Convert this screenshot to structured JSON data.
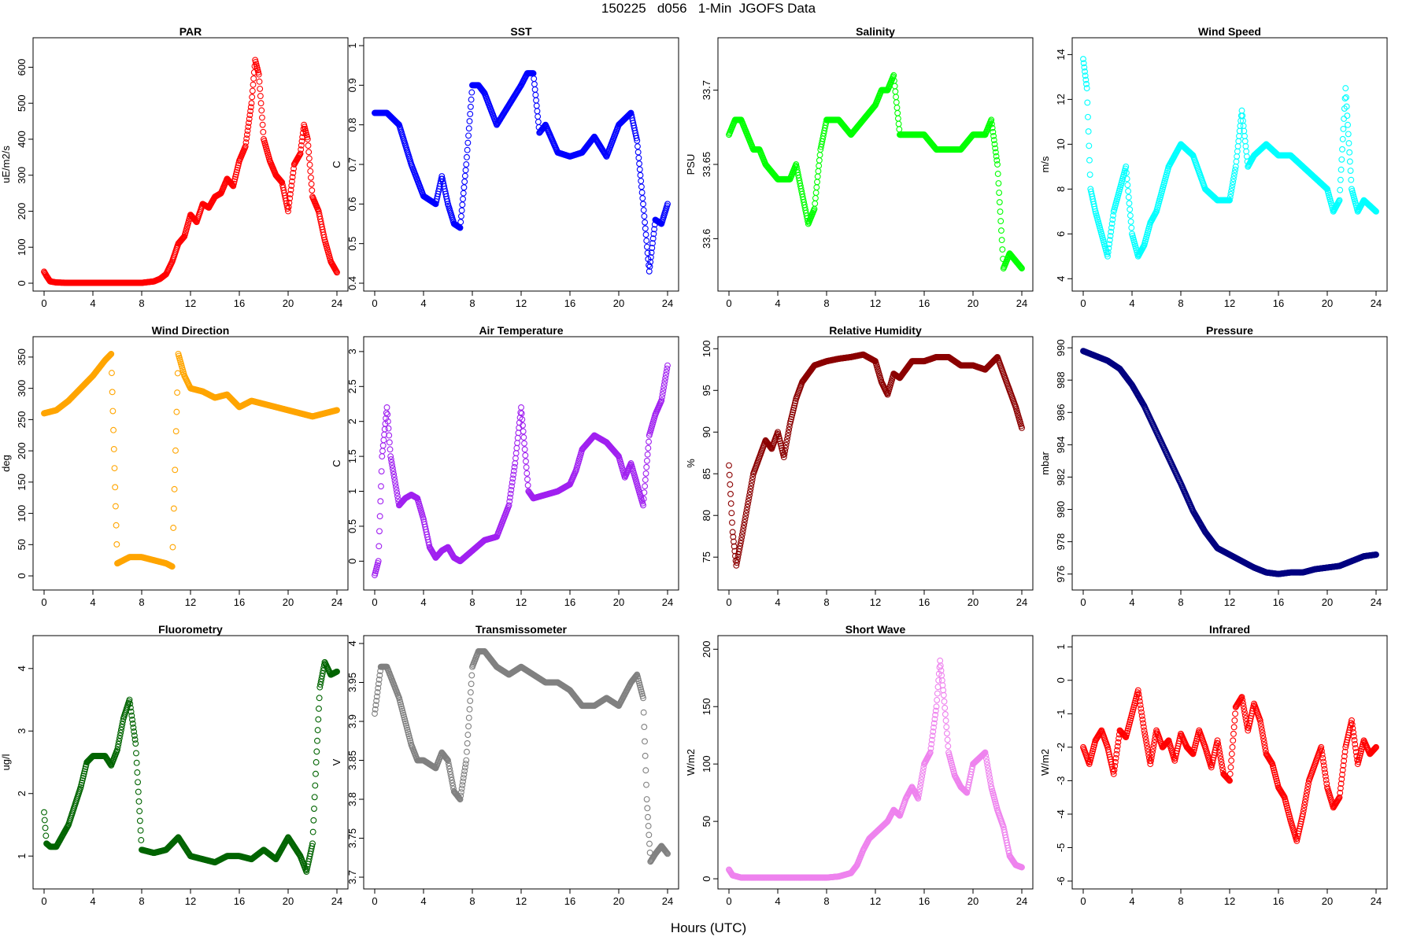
{
  "title": "150225   d056   1-Min  JGOFS Data",
  "xlabel": "Hours (UTC)",
  "chart_data": [
    {
      "type": "scatter",
      "title": "PAR",
      "ylabel": "uE/m2/s",
      "color": "#ff0000",
      "xlim": [
        0,
        24
      ],
      "ylim": [
        0,
        660
      ],
      "xticks": [
        0,
        4,
        8,
        12,
        16,
        20,
        24
      ],
      "yticks": [
        0,
        100,
        200,
        300,
        400,
        500,
        600
      ],
      "x": [
        0,
        0.2,
        0.5,
        1,
        2,
        4,
        6,
        8,
        9,
        9.5,
        10,
        10.5,
        11,
        11.5,
        12,
        12.5,
        13,
        13.5,
        14,
        14.5,
        15,
        15.5,
        16,
        16.5,
        17,
        17.3,
        17.6,
        18,
        18.5,
        19,
        19.5,
        20,
        20.5,
        21,
        21.3,
        21.6,
        22,
        22.5,
        23,
        23.5,
        24
      ],
      "y": [
        32,
        20,
        5,
        2,
        1,
        1,
        1,
        1,
        5,
        12,
        25,
        60,
        110,
        130,
        190,
        170,
        220,
        210,
        240,
        250,
        290,
        270,
        340,
        380,
        500,
        620,
        580,
        400,
        340,
        300,
        280,
        200,
        330,
        360,
        440,
        400,
        240,
        200,
        120,
        60,
        30
      ]
    },
    {
      "type": "scatter",
      "title": "SST",
      "ylabel": "C",
      "color": "#0000ff",
      "xlim": [
        0,
        24
      ],
      "ylim": [
        0.4,
        1.0
      ],
      "xticks": [
        0,
        4,
        8,
        12,
        16,
        20,
        24
      ],
      "yticks": [
        0.4,
        0.5,
        0.6,
        0.7,
        0.8,
        0.9,
        1.0
      ],
      "x": [
        0,
        1,
        2,
        3,
        4,
        5,
        5.5,
        6,
        6.5,
        7,
        7.5,
        8,
        8.5,
        9,
        10,
        11,
        12,
        12.5,
        13,
        13.5,
        14,
        15,
        16,
        17,
        18,
        19,
        20,
        21,
        21.5,
        22,
        22.5,
        23,
        23.5,
        24
      ],
      "y": [
        0.83,
        0.83,
        0.8,
        0.7,
        0.62,
        0.6,
        0.67,
        0.6,
        0.55,
        0.54,
        0.7,
        0.9,
        0.9,
        0.88,
        0.8,
        0.85,
        0.9,
        0.93,
        0.93,
        0.78,
        0.8,
        0.73,
        0.72,
        0.73,
        0.77,
        0.72,
        0.8,
        0.83,
        0.76,
        0.6,
        0.43,
        0.56,
        0.55,
        0.6
      ]
    },
    {
      "type": "scatter",
      "title": "Salinity",
      "ylabel": "PSU",
      "color": "#00ff00",
      "xlim": [
        0,
        24
      ],
      "ylim": [
        33.57,
        33.73
      ],
      "xticks": [
        0,
        4,
        8,
        12,
        16,
        20,
        24
      ],
      "yticks": [
        33.6,
        33.65,
        33.7
      ],
      "x": [
        0,
        0.5,
        1,
        1.5,
        2,
        2.5,
        3,
        4,
        5,
        5.5,
        6,
        6.5,
        7,
        7.5,
        8,
        9,
        10,
        11,
        12,
        12.5,
        13,
        13.5,
        14,
        15,
        16,
        17,
        18,
        19,
        20,
        21,
        21.5,
        22,
        22.5,
        23,
        24
      ],
      "y": [
        33.67,
        33.68,
        33.68,
        33.67,
        33.66,
        33.66,
        33.65,
        33.64,
        33.64,
        33.65,
        33.63,
        33.61,
        33.62,
        33.66,
        33.68,
        33.68,
        33.67,
        33.68,
        33.69,
        33.7,
        33.7,
        33.71,
        33.67,
        33.67,
        33.67,
        33.66,
        33.66,
        33.66,
        33.67,
        33.67,
        33.68,
        33.65,
        33.58,
        33.59,
        33.58
      ]
    },
    {
      "type": "scatter",
      "title": "Wind Speed",
      "ylabel": "m/s",
      "color": "#00ffff",
      "xlim": [
        0,
        24
      ],
      "ylim": [
        3.8,
        14.4
      ],
      "xticks": [
        0,
        4,
        8,
        12,
        16,
        20,
        24
      ],
      "yticks": [
        4,
        6,
        8,
        10,
        12,
        14
      ],
      "x": [
        0,
        0.3,
        0.6,
        1,
        1.5,
        2,
        2.5,
        3,
        3.5,
        4,
        4.5,
        5,
        5.5,
        6,
        7,
        8,
        9,
        10,
        11,
        12,
        12.5,
        13,
        13.5,
        14,
        15,
        16,
        17,
        18,
        19,
        20,
        20.5,
        21,
        21.5,
        22,
        22.5,
        23,
        24
      ],
      "y": [
        13.8,
        12.5,
        8,
        7,
        6,
        5,
        7,
        8,
        9,
        6,
        5,
        5.5,
        6.5,
        7,
        9,
        10,
        9.5,
        8,
        7.5,
        7.5,
        9,
        11.5,
        9,
        9.5,
        10,
        9.5,
        9.5,
        9,
        8.5,
        8,
        7,
        7.5,
        12.5,
        8,
        7,
        7.5,
        7
      ]
    },
    {
      "type": "scatter",
      "title": "Wind Direction",
      "ylabel": "deg",
      "color": "#ffa500",
      "xlim": [
        0,
        24
      ],
      "ylim": [
        -10,
        370
      ],
      "xticks": [
        0,
        4,
        8,
        12,
        16,
        20,
        24
      ],
      "yticks": [
        0,
        50,
        100,
        150,
        200,
        250,
        300,
        350
      ],
      "x": [
        0,
        1,
        2,
        3,
        4,
        5,
        5.5,
        6,
        6.5,
        7,
        8,
        9,
        10,
        10.5,
        11,
        11.5,
        12,
        13,
        14,
        15,
        16,
        17,
        18,
        19,
        20,
        21,
        22,
        23,
        24
      ],
      "y": [
        260,
        265,
        280,
        300,
        320,
        345,
        355,
        20,
        25,
        30,
        30,
        25,
        20,
        15,
        355,
        320,
        300,
        295,
        285,
        290,
        270,
        280,
        275,
        270,
        265,
        260,
        255,
        260,
        265
      ]
    },
    {
      "type": "scatter",
      "title": "Air Temperature",
      "ylabel": "C",
      "color": "#a020f0",
      "xlim": [
        0,
        24
      ],
      "ylim": [
        -0.3,
        3.1
      ],
      "xticks": [
        0,
        4,
        8,
        12,
        16,
        20,
        24
      ],
      "yticks": [
        0,
        0.5,
        1,
        1.5,
        2,
        2.5,
        3
      ],
      "x": [
        0,
        0.3,
        0.6,
        1,
        1.3,
        1.6,
        2,
        2.5,
        3,
        3.5,
        4,
        4.5,
        5,
        5.5,
        6,
        6.5,
        7,
        8,
        9,
        10,
        11,
        11.5,
        12,
        12.3,
        12.6,
        13,
        14,
        15,
        16,
        16.5,
        17,
        18,
        19,
        20,
        20.5,
        21,
        21.5,
        22,
        22.5,
        23,
        23.5,
        24
      ],
      "y": [
        -0.2,
        0,
        1.5,
        2.2,
        1.5,
        1.2,
        0.8,
        0.9,
        0.95,
        0.9,
        0.6,
        0.2,
        0.05,
        0.15,
        0.2,
        0.05,
        0,
        0.15,
        0.3,
        0.35,
        0.8,
        1.4,
        2.2,
        1.6,
        1.0,
        0.9,
        0.95,
        1.0,
        1.1,
        1.3,
        1.6,
        1.8,
        1.7,
        1.5,
        1.2,
        1.4,
        1.1,
        0.8,
        1.8,
        2.1,
        2.3,
        2.8
      ]
    },
    {
      "type": "scatter",
      "title": "Relative Humidity",
      "ylabel": "%",
      "color": "#8b0000",
      "xlim": [
        0,
        24
      ],
      "ylim": [
        72,
        100.5
      ],
      "xticks": [
        0,
        4,
        8,
        12,
        16,
        20,
        24
      ],
      "yticks": [
        75,
        80,
        85,
        90,
        95,
        100
      ],
      "x": [
        0,
        0.3,
        0.6,
        1,
        1.5,
        2,
        2.5,
        3,
        3.5,
        4,
        4.5,
        5,
        5.5,
        6,
        7,
        8,
        9,
        10,
        11,
        12,
        12.5,
        13,
        13.5,
        14,
        15,
        16,
        17,
        18,
        19,
        20,
        21,
        22,
        22.5,
        23,
        23.5,
        24
      ],
      "y": [
        86,
        78,
        74,
        77,
        81,
        85,
        87,
        89,
        88,
        90,
        87,
        91,
        94,
        96,
        98,
        98.5,
        98.8,
        99,
        99.3,
        98.5,
        96,
        94.5,
        97,
        96.5,
        98.5,
        98.5,
        99,
        99,
        98,
        98,
        97.5,
        99,
        97,
        95,
        93,
        90.5
      ]
    },
    {
      "type": "scatter",
      "title": "Pressure",
      "ylabel": "mbar",
      "color": "#000080",
      "xlim": [
        0,
        24
      ],
      "ylim": [
        975.5,
        990.2
      ],
      "xticks": [
        0,
        4,
        8,
        12,
        16,
        20,
        24
      ],
      "yticks": [
        976,
        978,
        980,
        982,
        984,
        986,
        988,
        990
      ],
      "x": [
        0,
        1,
        2,
        3,
        4,
        5,
        6,
        7,
        8,
        9,
        10,
        11,
        12,
        13,
        14,
        15,
        16,
        17,
        18,
        19,
        20,
        21,
        22,
        23,
        24
      ],
      "y": [
        989.8,
        989.5,
        989.2,
        988.7,
        987.7,
        986.4,
        984.8,
        983.2,
        981.6,
        979.9,
        978.6,
        977.6,
        977.2,
        976.8,
        976.4,
        976.1,
        976,
        976.1,
        976.1,
        976.3,
        976.4,
        976.5,
        976.8,
        977.1,
        977.2
      ]
    },
    {
      "type": "scatter",
      "title": "Fluorometry",
      "ylabel": "ug/l",
      "color": "#006400",
      "xlim": [
        0,
        24
      ],
      "ylim": [
        0.6,
        4.4
      ],
      "xticks": [
        0,
        4,
        8,
        12,
        16,
        20,
        24
      ],
      "yticks": [
        1,
        2,
        3,
        4
      ],
      "x": [
        0,
        0.2,
        0.5,
        1,
        2,
        3,
        3.5,
        4,
        5,
        5.5,
        6,
        6.5,
        7,
        7.5,
        8,
        9,
        10,
        11,
        12,
        13,
        14,
        15,
        16,
        17,
        18,
        19,
        20,
        21,
        21.5,
        22,
        22.3,
        22.6,
        23,
        23.5,
        24
      ],
      "y": [
        1.7,
        1.2,
        1.15,
        1.15,
        1.5,
        2.1,
        2.5,
        2.6,
        2.6,
        2.45,
        2.7,
        3.2,
        3.5,
        2.8,
        1.1,
        1.05,
        1.1,
        1.3,
        1.0,
        0.95,
        0.9,
        1.0,
        1.0,
        0.95,
        1.1,
        0.95,
        1.3,
        1.0,
        0.75,
        1.2,
        2.5,
        3.7,
        4.1,
        3.9,
        3.95
      ]
    },
    {
      "type": "scatter",
      "title": "Transmissometer",
      "ylabel": "V",
      "color": "#808080",
      "xlim": [
        0,
        24
      ],
      "ylim": [
        3.695,
        4.0
      ],
      "xticks": [
        0,
        4,
        8,
        12,
        16,
        20,
        24
      ],
      "yticks": [
        3.7,
        3.75,
        3.8,
        3.85,
        3.9,
        3.95,
        4.0
      ],
      "x": [
        0,
        0.5,
        1,
        1.5,
        2,
        2.5,
        3,
        3.5,
        4,
        5,
        5.5,
        6,
        6.5,
        7,
        7.5,
        8,
        8.5,
        9,
        10,
        11,
        12,
        13,
        14,
        15,
        16,
        17,
        18,
        19,
        20,
        21,
        21.5,
        22,
        22.3,
        22.6,
        23,
        23.5,
        24
      ],
      "y": [
        3.91,
        3.97,
        3.97,
        3.95,
        3.93,
        3.9,
        3.87,
        3.85,
        3.85,
        3.84,
        3.86,
        3.85,
        3.81,
        3.8,
        3.85,
        3.97,
        3.99,
        3.99,
        3.97,
        3.96,
        3.97,
        3.96,
        3.95,
        3.95,
        3.94,
        3.92,
        3.92,
        3.93,
        3.92,
        3.95,
        3.96,
        3.93,
        3.8,
        3.72,
        3.73,
        3.74,
        3.73
      ]
    },
    {
      "type": "scatter",
      "title": "Short Wave",
      "ylabel": "W/m2",
      "color": "#ee82ee",
      "xlim": [
        0,
        24
      ],
      "ylim": [
        -2,
        205
      ],
      "xticks": [
        0,
        4,
        8,
        12,
        16,
        20,
        24
      ],
      "yticks": [
        0,
        50,
        100,
        150,
        200
      ],
      "x": [
        0,
        0.3,
        1,
        2,
        4,
        6,
        8,
        9,
        10,
        10.5,
        11,
        11.5,
        12,
        12.5,
        13,
        13.5,
        14,
        14.5,
        15,
        15.5,
        16,
        16.5,
        17,
        17.3,
        17.6,
        18,
        18.5,
        19,
        19.5,
        20,
        20.5,
        21,
        21.5,
        22,
        22.5,
        23,
        23.5,
        24
      ],
      "y": [
        8,
        3,
        1,
        1,
        1,
        1,
        1,
        2,
        5,
        12,
        25,
        35,
        40,
        45,
        50,
        60,
        55,
        70,
        80,
        70,
        100,
        110,
        150,
        190,
        160,
        110,
        90,
        80,
        75,
        100,
        105,
        110,
        80,
        60,
        45,
        20,
        12,
        10
      ]
    },
    {
      "type": "scatter",
      "title": "Infrared",
      "ylabel": "W/m2",
      "color": "#ff0000",
      "xlim": [
        0,
        24
      ],
      "ylim": [
        -6,
        1.1
      ],
      "xticks": [
        0,
        4,
        8,
        12,
        16,
        20,
        24
      ],
      "yticks": [
        -6,
        -5,
        -4,
        -3,
        -2,
        -1,
        0,
        1
      ],
      "x": [
        0,
        0.5,
        1,
        1.5,
        2,
        2.5,
        3,
        3.5,
        4,
        4.5,
        5,
        5.5,
        6,
        6.5,
        7,
        7.5,
        8,
        8.5,
        9,
        9.5,
        10,
        10.5,
        11,
        11.5,
        12,
        12.5,
        13,
        13.5,
        14,
        14.5,
        15,
        15.5,
        16,
        16.5,
        17,
        17.5,
        18,
        18.5,
        19,
        19.5,
        20,
        20.5,
        21,
        21.5,
        22,
        22.5,
        23,
        23.5,
        24
      ],
      "y": [
        -2,
        -2.5,
        -1.8,
        -1.5,
        -2,
        -2.8,
        -1.5,
        -1.7,
        -1,
        -0.3,
        -1.5,
        -2.5,
        -1.5,
        -2,
        -1.8,
        -2.4,
        -1.6,
        -2,
        -2.2,
        -1.5,
        -2,
        -2.6,
        -1.8,
        -2.8,
        -3,
        -0.8,
        -0.5,
        -1.5,
        -0.7,
        -1.2,
        -2.2,
        -2.5,
        -3.2,
        -3.5,
        -4.2,
        -4.8,
        -4,
        -3,
        -2.5,
        -2,
        -3.2,
        -3.8,
        -3.5,
        -2,
        -1.2,
        -2.5,
        -1.8,
        -2.2,
        -2
      ]
    }
  ]
}
